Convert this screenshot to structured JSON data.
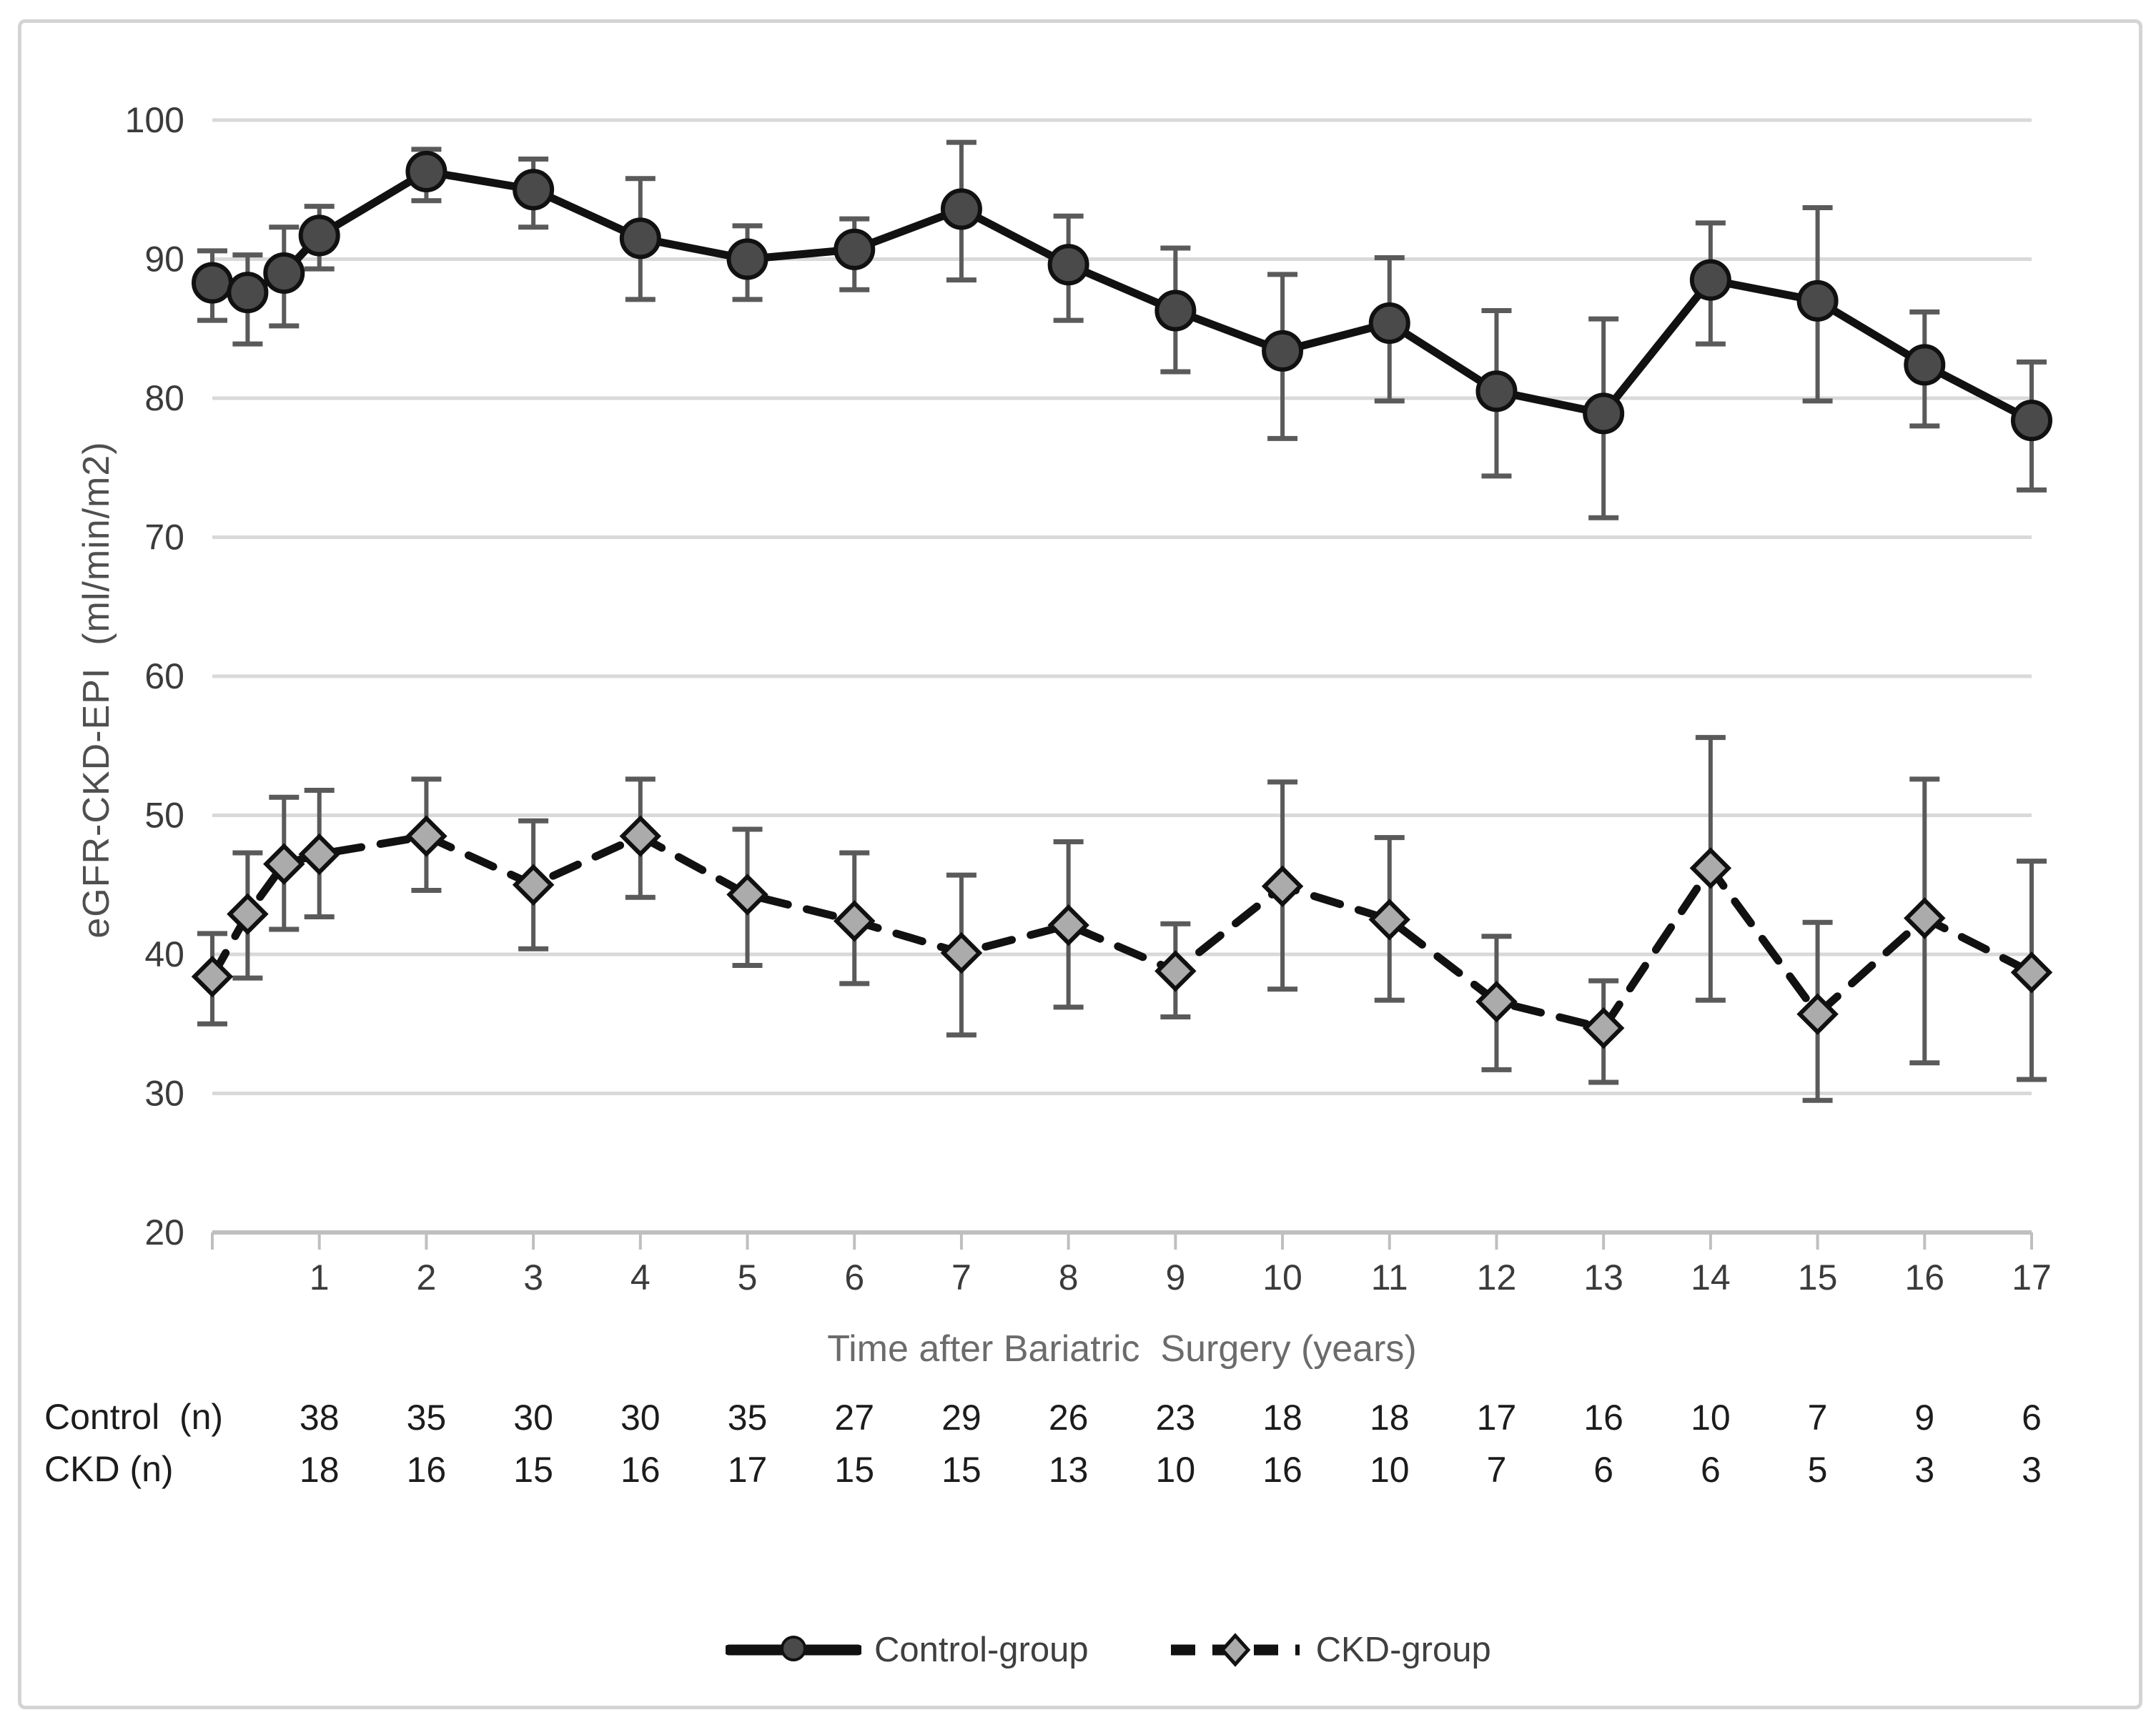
{
  "chart_data": {
    "type": "line",
    "title": "",
    "xlabel": "Time after Bariatric  Surgery (years)",
    "ylabel": "eGFR-CKD-EPI  (ml/min/m2)",
    "x_ticks": [
      1,
      2,
      3,
      4,
      5,
      6,
      7,
      8,
      9,
      10,
      11,
      12,
      13,
      14,
      15,
      16,
      17
    ],
    "y_ticks": [
      100,
      90,
      80,
      70,
      60,
      50,
      40,
      30,
      20
    ],
    "xlim": [
      0,
      17
    ],
    "ylim": [
      20,
      100
    ],
    "grid": true,
    "legend_position": "bottom",
    "x": [
      0,
      0.33,
      0.67,
      1,
      2,
      3,
      4,
      5,
      6,
      7,
      8,
      9,
      10,
      11,
      12,
      13,
      14,
      15,
      16,
      17
    ],
    "series": [
      {
        "name": "Control-group",
        "marker": "circle",
        "line": "solid",
        "values": [
          88.3,
          87.6,
          89.0,
          91.7,
          96.3,
          95.0,
          91.5,
          90.0,
          90.7,
          93.6,
          89.6,
          86.3,
          83.4,
          85.4,
          80.5,
          78.9,
          88.5,
          87.0,
          82.4,
          78.4
        ],
        "err_upper": [
          90.6,
          90.3,
          92.3,
          93.8,
          97.9,
          97.2,
          95.8,
          92.4,
          92.9,
          98.4,
          93.1,
          90.8,
          88.9,
          90.1,
          86.3,
          85.7,
          92.6,
          93.7,
          86.2,
          82.6
        ],
        "err_lower": [
          85.6,
          83.9,
          85.2,
          89.3,
          94.2,
          92.3,
          87.1,
          87.1,
          87.8,
          88.5,
          85.6,
          81.9,
          77.1,
          79.8,
          74.4,
          71.4,
          83.9,
          79.8,
          78.0,
          73.4
        ]
      },
      {
        "name": "CKD-group",
        "marker": "diamond",
        "line": "dashed",
        "values": [
          38.4,
          42.9,
          46.5,
          47.2,
          48.5,
          45.0,
          48.5,
          44.3,
          42.4,
          40.1,
          42.1,
          38.8,
          44.9,
          42.5,
          36.6,
          34.7,
          46.2,
          35.7,
          42.6,
          38.7
        ],
        "err_upper": [
          41.5,
          47.3,
          51.3,
          51.8,
          52.6,
          49.6,
          52.6,
          49.0,
          47.3,
          45.7,
          48.1,
          42.2,
          52.4,
          48.4,
          41.3,
          38.1,
          55.6,
          42.3,
          52.6,
          46.7
        ],
        "err_lower": [
          35.0,
          38.3,
          41.8,
          42.7,
          44.6,
          40.4,
          44.1,
          39.2,
          37.9,
          34.2,
          36.2,
          35.5,
          37.5,
          36.7,
          31.7,
          30.8,
          36.7,
          29.5,
          32.2,
          31.0
        ]
      }
    ]
  },
  "n_table": {
    "rows": [
      {
        "label": "Control  (n)",
        "values": [
          38,
          35,
          30,
          30,
          35,
          27,
          29,
          26,
          23,
          18,
          18,
          17,
          16,
          10,
          7,
          9,
          6
        ]
      },
      {
        "label": "CKD (n)",
        "values": [
          18,
          16,
          15,
          16,
          17,
          15,
          15,
          13,
          10,
          16,
          10,
          7,
          6,
          6,
          5,
          3,
          3
        ]
      }
    ]
  },
  "legend": {
    "items": [
      {
        "label": "Control-group",
        "marker": "solid-line-circle"
      },
      {
        "label": "CKD-group",
        "marker": "dashed-line-diamond"
      }
    ]
  },
  "colors": {
    "grid": "#d9d9d9",
    "axis": "#bfbfbf",
    "error_bar": "#5a5a5a",
    "line": "#111111",
    "circle_fill": "#4a4a4a",
    "diamond_fill": "#ababab",
    "tick_text": "#3b3b3b",
    "table_text": "#1c1c1c"
  }
}
